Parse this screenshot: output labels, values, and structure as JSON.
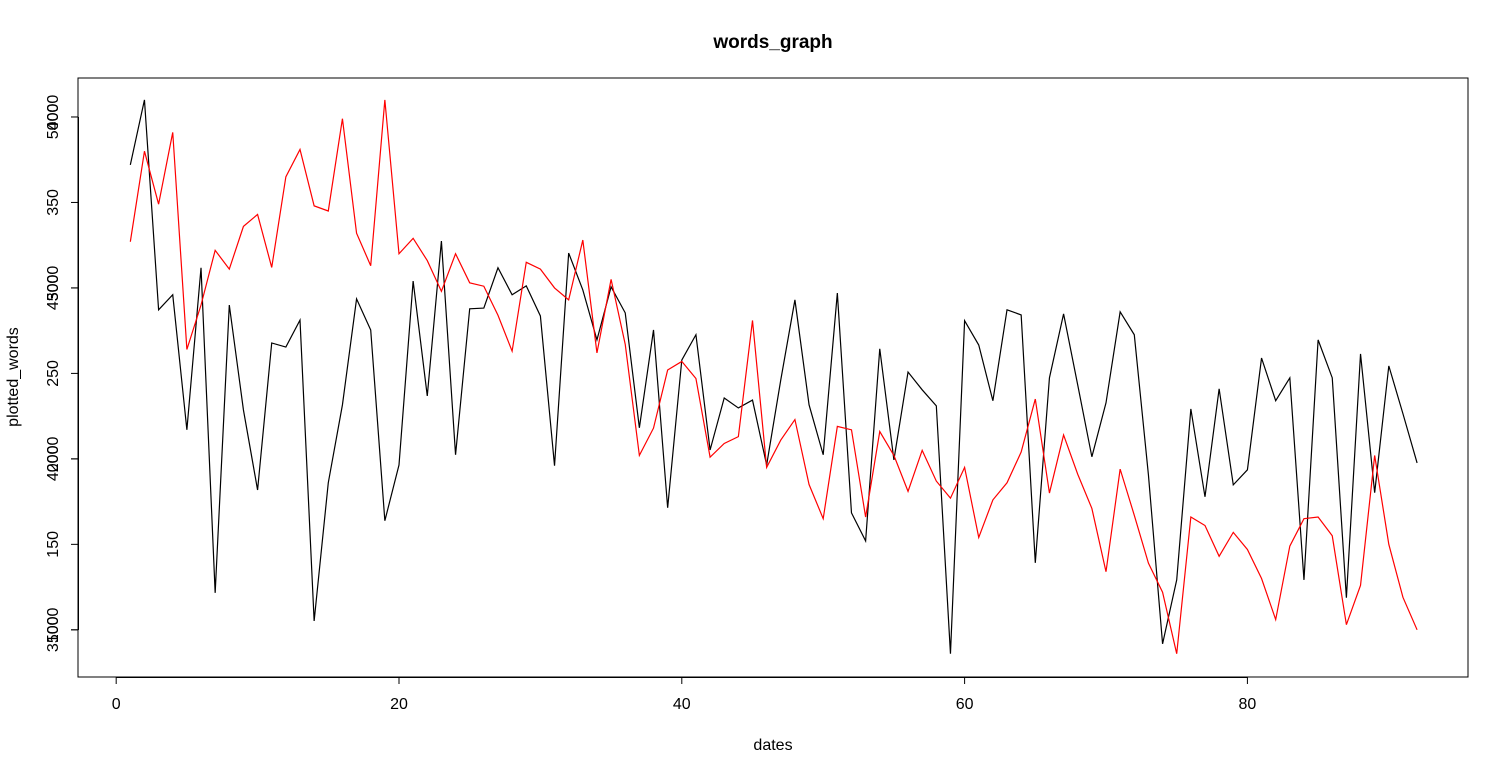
{
  "chart_data": {
    "type": "line",
    "title": "words_graph",
    "xlabel": "dates",
    "ylabel": "plotted_words",
    "x": [
      1,
      2,
      3,
      4,
      5,
      6,
      7,
      8,
      9,
      10,
      11,
      12,
      13,
      14,
      15,
      16,
      17,
      18,
      19,
      20,
      21,
      22,
      23,
      24,
      25,
      26,
      27,
      28,
      29,
      30,
      31,
      32,
      33,
      34,
      35,
      36,
      37,
      38,
      39,
      40,
      41,
      42,
      43,
      44,
      45,
      46,
      47,
      48,
      49,
      50,
      51,
      52,
      53,
      54,
      55,
      56,
      57,
      58,
      59,
      60,
      61,
      62,
      63,
      64,
      65,
      66,
      67,
      68,
      69,
      70,
      71,
      72,
      73,
      74,
      75,
      76,
      77,
      78,
      79,
      80,
      81,
      82,
      83,
      84,
      85,
      86,
      87,
      88,
      89,
      90,
      91,
      92
    ],
    "xlim": [
      -2.7,
      95.6
    ],
    "xticks": [
      0,
      20,
      40,
      60,
      80
    ],
    "ylim": [
      33620,
      51140
    ],
    "yticks": [
      35000,
      40000,
      45000,
      50000
    ],
    "y2lim": [
      72.4,
      422.8
    ],
    "y2ticks": [
      100,
      150,
      200,
      250,
      300,
      350,
      400
    ],
    "series": [
      {
        "color": "#000000",
        "values": [
          48600,
          50500,
          44360,
          44800,
          40850,
          45590,
          36080,
          44500,
          41430,
          39090,
          43390,
          43270,
          44060,
          35260,
          39300,
          41580,
          44680,
          43770,
          38190,
          39820,
          45200,
          41840,
          46370,
          40120,
          44390,
          44410,
          45590,
          44800,
          45060,
          44180,
          39800,
          46020,
          44940,
          43480,
          45030,
          44270,
          40910,
          43770,
          38570,
          42890,
          43630,
          40260,
          41780,
          41490,
          41720,
          39820,
          42310,
          44650,
          41580,
          40120,
          44850,
          38420,
          37600,
          43220,
          39970,
          42540,
          42020,
          41550,
          34300,
          44040,
          43330,
          41700,
          44360,
          44210,
          36960,
          42370,
          44240,
          42160,
          40060,
          41640,
          44300,
          43630,
          39530,
          34590,
          36460,
          41460,
          38890,
          42050,
          39240,
          39680,
          42950,
          41700,
          42370,
          36460,
          43480,
          42370,
          35940,
          43070,
          39010,
          42720,
          41320,
          39880
        ]
      },
      {
        "color": "#ff0000",
        "axis": "y2",
        "values": [
          327,
          380,
          349,
          391,
          264,
          290,
          322,
          311,
          336,
          343,
          312,
          365,
          381,
          348,
          345,
          399,
          332,
          313,
          410,
          320,
          329,
          316,
          298,
          320,
          303,
          301,
          284,
          263,
          315,
          311,
          300,
          293,
          328,
          262,
          305,
          267,
          202,
          218,
          252,
          257,
          247,
          201,
          209,
          213,
          281,
          195,
          211,
          223,
          185,
          165,
          219,
          217,
          166,
          216,
          202,
          181,
          205,
          187,
          177,
          195,
          154,
          176,
          186,
          204,
          235,
          180,
          214,
          191,
          171,
          134,
          194,
          167,
          139,
          122,
          86,
          166,
          161,
          143,
          157,
          147,
          130,
          106,
          149,
          165,
          166,
          155,
          103,
          126,
          202,
          150,
          119,
          100
        ]
      }
    ]
  }
}
